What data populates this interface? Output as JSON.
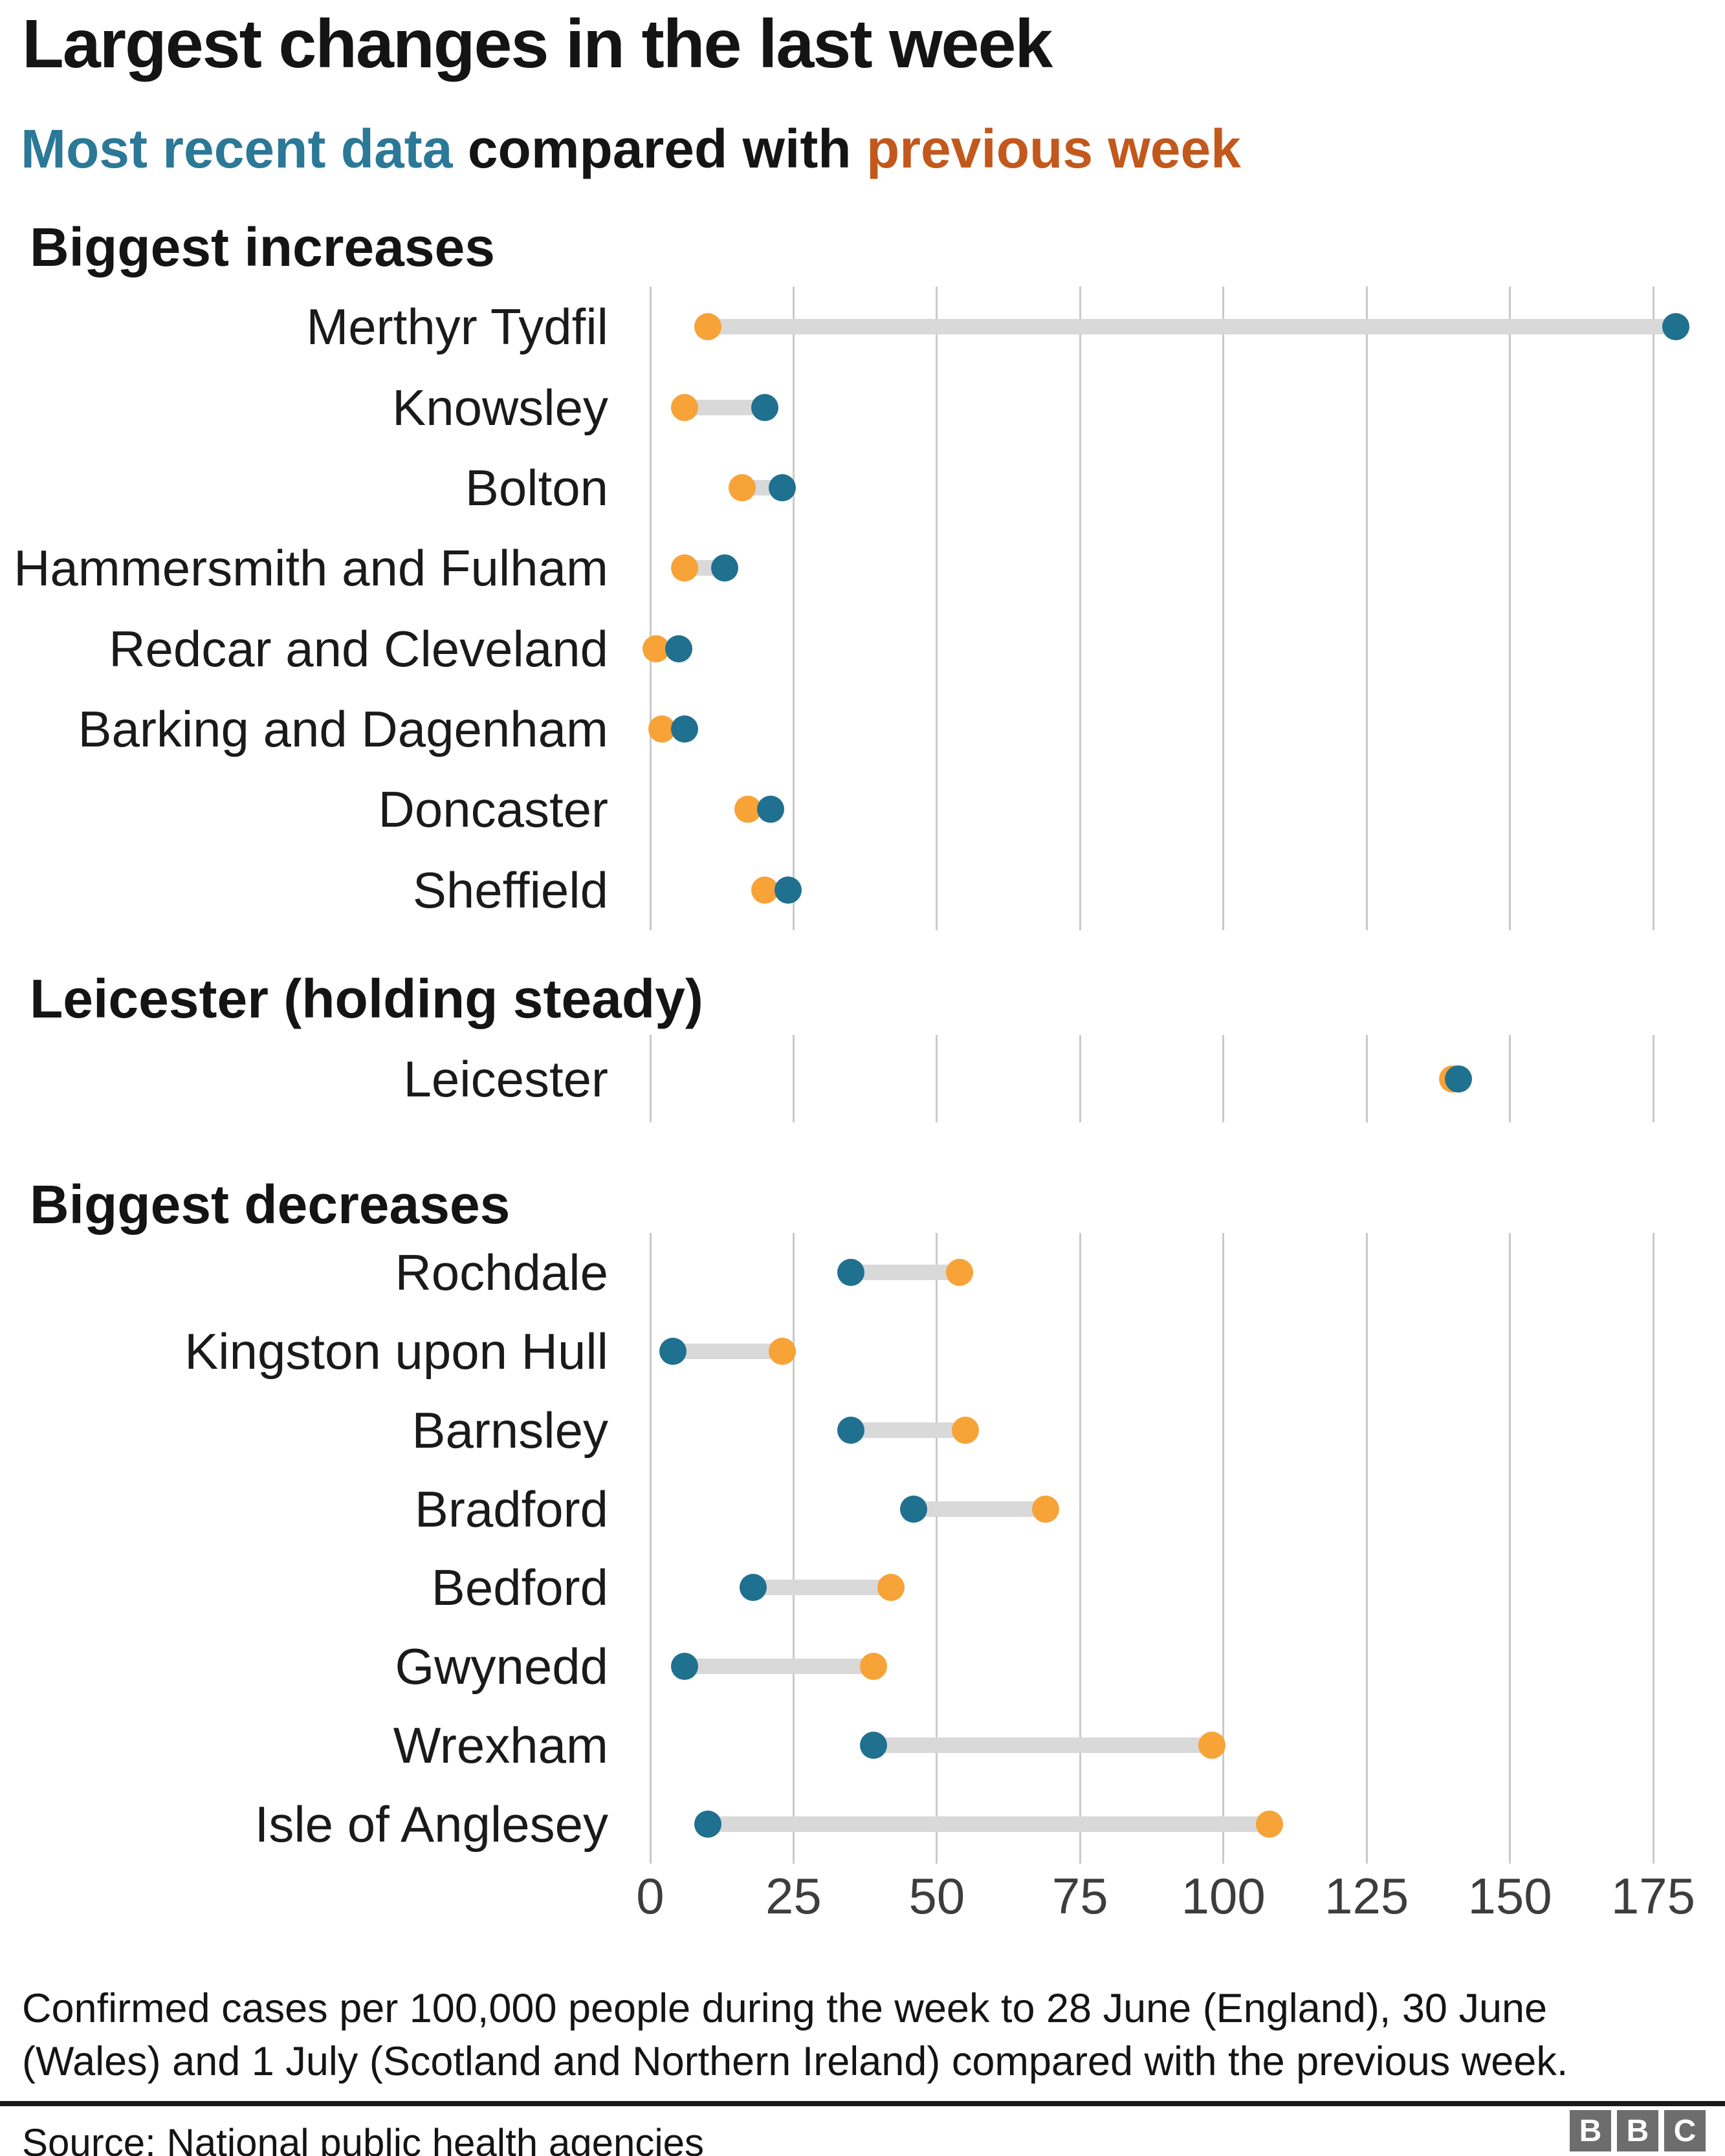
{
  "page": {
    "title": "Largest changes in the last week",
    "subtitle": {
      "recent_label": "Most recent data",
      "middle": " compared with ",
      "previous_label": "previous week"
    },
    "footnote_line1": "Confirmed cases per 100,000 people during the week to 28 June (England), 30 June",
    "footnote_line2": "(Wales) and 1 July (Scotland and Northern Ireland) compared with the previous week.",
    "source": "Source: National public health agencies",
    "logo_letters": [
      "B",
      "B",
      "C"
    ]
  },
  "colors": {
    "recent_dot": "#20708F",
    "previous_dot": "#F7A338",
    "subtitle_recent_text": "#2B7897",
    "subtitle_previous_text": "#C2581C",
    "connector_bar": "#D9D9D9",
    "gridline": "#C9C9C9"
  },
  "chart_data": {
    "type": "dumbbell",
    "title": "Largest changes in the last week",
    "unit": "confirmed cases per 100,000 people",
    "legend": {
      "recent": "Most recent data",
      "previous": "previous week"
    },
    "axis": {
      "min": 0,
      "max": 175,
      "ticks": [
        0,
        25,
        50,
        75,
        100,
        125,
        150,
        175
      ],
      "grid": true
    },
    "sections": [
      {
        "header": "Biggest increases",
        "rows": [
          {
            "label": "Merthyr Tydfil",
            "previous": 10,
            "recent": 179
          },
          {
            "label": "Knowsley",
            "previous": 6,
            "recent": 20
          },
          {
            "label": "Bolton",
            "previous": 16,
            "recent": 23
          },
          {
            "label": "Hammersmith and Fulham",
            "previous": 6,
            "recent": 13
          },
          {
            "label": "Redcar and Cleveland",
            "previous": 1,
            "recent": 5
          },
          {
            "label": "Barking and Dagenham",
            "previous": 2,
            "recent": 6
          },
          {
            "label": "Doncaster",
            "previous": 17,
            "recent": 21
          },
          {
            "label": "Sheffield",
            "previous": 20,
            "recent": 24
          }
        ]
      },
      {
        "header": "Leicester (holding steady)",
        "rows": [
          {
            "label": "Leicester",
            "previous": 140,
            "recent": 141
          }
        ]
      },
      {
        "header": "Biggest decreases",
        "rows": [
          {
            "label": "Rochdale",
            "previous": 54,
            "recent": 35
          },
          {
            "label": "Kingston upon Hull",
            "previous": 23,
            "recent": 4
          },
          {
            "label": "Barnsley",
            "previous": 55,
            "recent": 35
          },
          {
            "label": "Bradford",
            "previous": 69,
            "recent": 46
          },
          {
            "label": "Bedford",
            "previous": 42,
            "recent": 18
          },
          {
            "label": "Gwynedd",
            "previous": 39,
            "recent": 6
          },
          {
            "label": "Wrexham",
            "previous": 98,
            "recent": 39
          },
          {
            "label": "Isle of Anglesey",
            "previous": 108,
            "recent": 10
          }
        ]
      }
    ]
  }
}
